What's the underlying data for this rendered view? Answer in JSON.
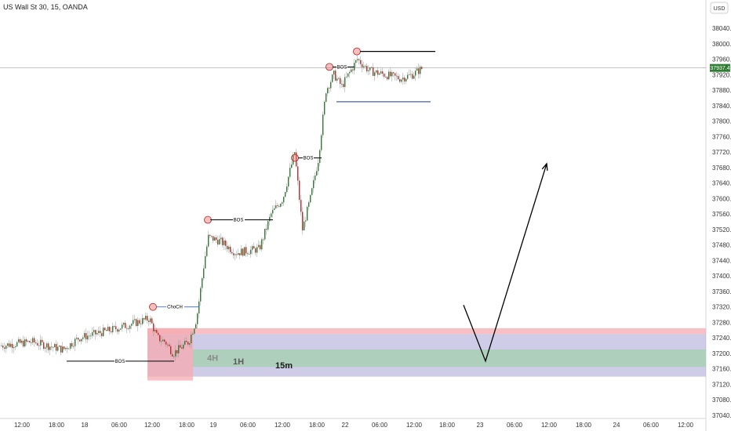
{
  "header": {
    "title": "US Wall St 30, 15, OANDA"
  },
  "currency_button": {
    "label": "USD"
  },
  "price_axis": {
    "ticks": [
      "38040.0",
      "38000.0",
      "37960.0",
      "37920.0",
      "37880.0",
      "37840.0",
      "37800.0",
      "37760.0",
      "37720.0",
      "37680.0",
      "37640.0",
      "37600.0",
      "37560.0",
      "37520.0",
      "37480.0",
      "37440.0",
      "37400.0",
      "37360.0",
      "37320.0",
      "37280.0",
      "37240.0",
      "37200.0",
      "37160.0",
      "37120.0",
      "37080.0",
      "37040.0"
    ],
    "last_price_label": "37937.4"
  },
  "time_axis": {
    "ticks": [
      "12:00",
      "18:00",
      "18",
      "06:00",
      "12:00",
      "18:00",
      "19",
      "06:00",
      "12:00",
      "18:00",
      "22",
      "06:00",
      "12:00",
      "18:00",
      "23",
      "06:00",
      "12:00",
      "18:00",
      "24",
      "06:00",
      "12:00"
    ]
  },
  "annotations": {
    "bos_labels": [
      "BOS",
      "BOS",
      "BOS",
      "BOS"
    ],
    "choch_label": "ChoCH",
    "zone_labels": [
      "4H",
      "1H",
      "15m"
    ]
  },
  "colors": {
    "up_candle": "#26a69a",
    "bullish_body": "#2e7d32",
    "down_candle": "#c62828",
    "zone_4h": "#b3b0d9",
    "zone_1h": "#f5a9b0",
    "zone_15m": "#a8cfb4",
    "choch_text": "#2962ff"
  },
  "chart_data": {
    "type": "candlestick",
    "symbol": "US Wall St 30",
    "timeframe": "15",
    "source": "OANDA",
    "ylim": [
      37040,
      38060
    ],
    "last_price": 37937.4,
    "path": [
      [
        0,
        37220
      ],
      [
        40,
        37230
      ],
      [
        80,
        37210
      ],
      [
        100,
        37240
      ],
      [
        140,
        37260
      ],
      [
        190,
        37290
      ],
      [
        200,
        37240
      ],
      [
        210,
        37230
      ],
      [
        220,
        37200
      ],
      [
        240,
        37230
      ],
      [
        250,
        37290
      ],
      [
        260,
        37440
      ],
      [
        265,
        37500
      ],
      [
        280,
        37490
      ],
      [
        300,
        37460
      ],
      [
        330,
        37470
      ],
      [
        345,
        37560
      ],
      [
        360,
        37600
      ],
      [
        375,
        37720
      ],
      [
        385,
        37520
      ],
      [
        395,
        37600
      ],
      [
        405,
        37700
      ],
      [
        415,
        37880
      ],
      [
        425,
        37920
      ],
      [
        435,
        37890
      ],
      [
        455,
        37960
      ],
      [
        470,
        37930
      ],
      [
        490,
        37920
      ],
      [
        510,
        37910
      ],
      [
        525,
        37920
      ],
      [
        538,
        37937
      ]
    ],
    "swing_levels": {
      "bos_1": 37180,
      "choch": 37320,
      "bos_2": 37545,
      "bos_3": 37705,
      "bos_4": 37940,
      "high": 37980,
      "pullback_low": 37850
    },
    "zones": [
      {
        "name": "4H",
        "from": 37140,
        "to": 37250
      },
      {
        "name": "1H",
        "from": 37230,
        "to": 37250
      },
      {
        "name": "15m",
        "from": 37165,
        "to": 37205
      }
    ],
    "projection": [
      [
        37320,
        "start"
      ],
      [
        37190,
        "low"
      ],
      [
        37690,
        "target"
      ]
    ]
  }
}
